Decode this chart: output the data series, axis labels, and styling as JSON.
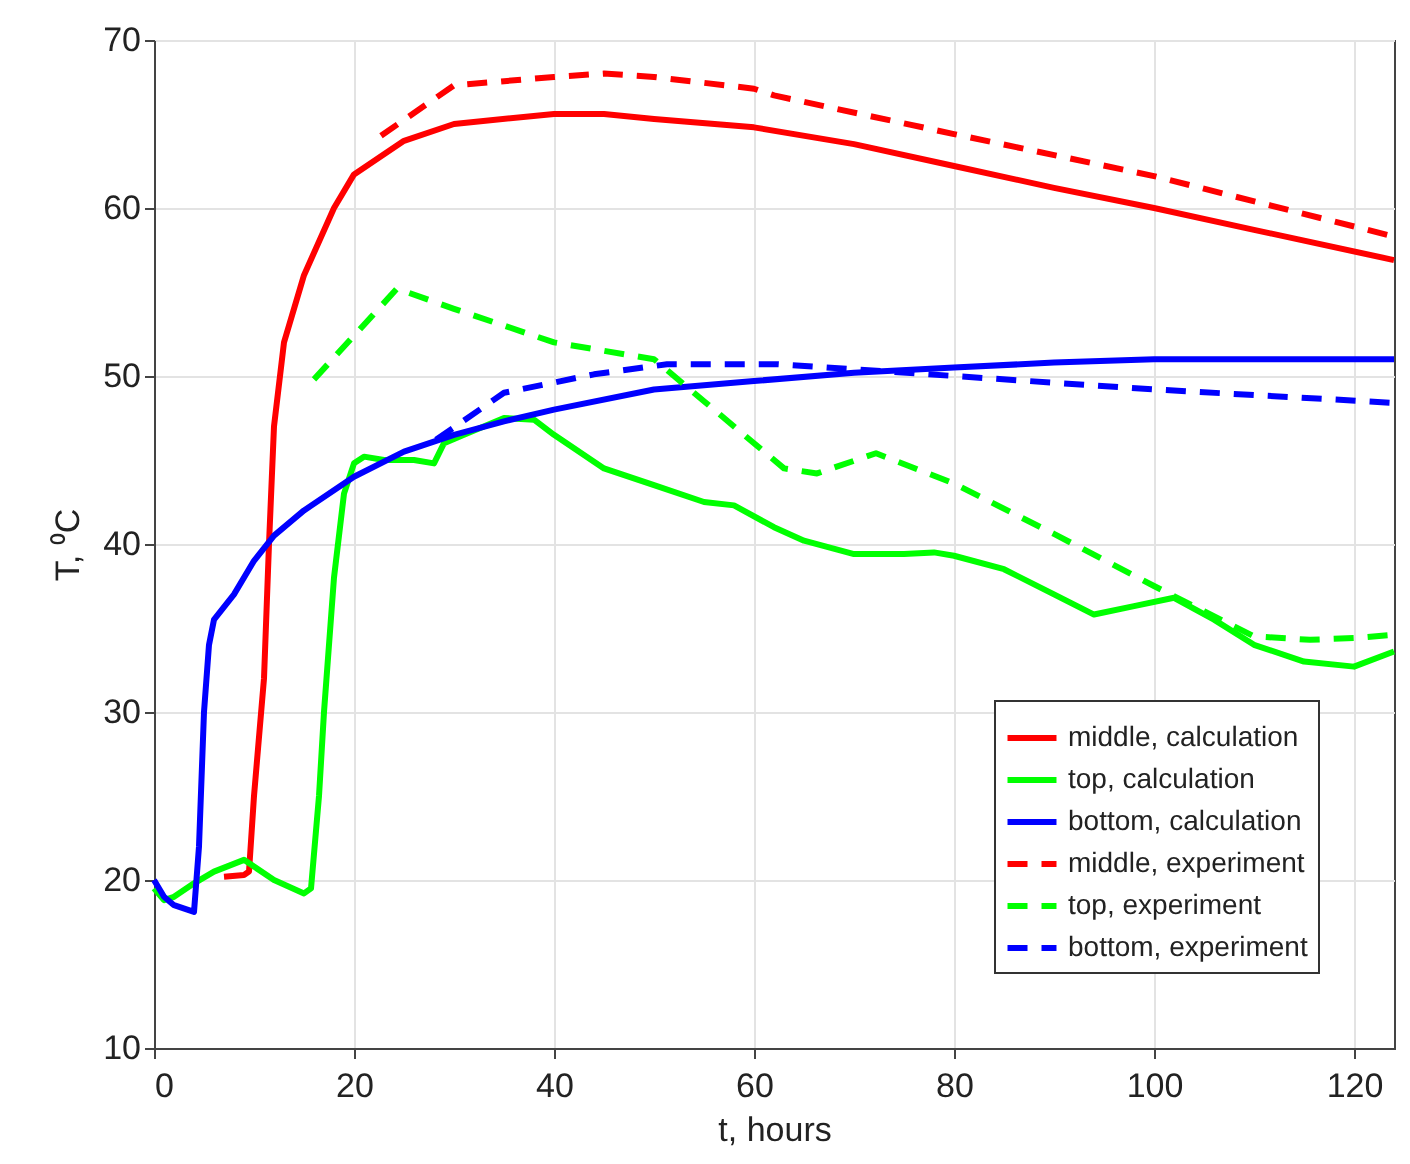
{
  "chart_data": {
    "type": "line",
    "xlabel": "t, hours",
    "ylabel": "T, ⁰C",
    "xlim": [
      0,
      124
    ],
    "xticks": [
      0,
      20,
      40,
      60,
      80,
      100,
      120
    ],
    "ylim": [
      10,
      70
    ],
    "yticks": [
      10,
      20,
      30,
      40,
      50,
      60,
      70
    ],
    "grid": true,
    "legend": "bottom right",
    "series": [
      {
        "name": "middle, calculation",
        "color": "#ff0000",
        "line_style": "solid",
        "x": [
          7,
          9,
          9.5,
          10,
          11,
          11.5,
          12,
          13,
          15,
          18,
          20,
          25,
          30,
          40,
          45,
          50,
          60,
          70,
          80,
          90,
          100,
          110,
          124
        ],
        "values": [
          20.2,
          20.3,
          20.5,
          25,
          32,
          40,
          47,
          52,
          56,
          60,
          62,
          64,
          65,
          65.6,
          65.6,
          65.3,
          64.8,
          63.8,
          62.5,
          61.2,
          60,
          58.7,
          56.9
        ]
      },
      {
        "name": "top, calculation",
        "color": "#00ff00",
        "line_style": "solid",
        "x": [
          0,
          1,
          2,
          4,
          6,
          9,
          10,
          12,
          15,
          15.7,
          16.5,
          17,
          18,
          19,
          20,
          21,
          23,
          26,
          28,
          29,
          31,
          35,
          38,
          40,
          45,
          50,
          55,
          58,
          62,
          65,
          70,
          75,
          78,
          80,
          85,
          90,
          94,
          98,
          102,
          106,
          110,
          115,
          120,
          124
        ],
        "values": [
          19.5,
          18.8,
          19,
          19.8,
          20.5,
          21.2,
          20.8,
          20,
          19.2,
          19.5,
          25,
          30,
          38,
          43,
          44.8,
          45.2,
          45,
          45,
          44.8,
          46,
          46.5,
          47.5,
          47.4,
          46.5,
          44.5,
          43.5,
          42.5,
          42.3,
          41,
          40.2,
          39.4,
          39.4,
          39.5,
          39.3,
          38.5,
          37,
          35.8,
          36.3,
          36.8,
          35.5,
          34,
          33,
          32.7,
          33.6
        ]
      },
      {
        "name": "bottom, calculation",
        "color": "#0000ff",
        "line_style": "solid",
        "x": [
          0,
          1,
          2,
          4,
          4.5,
          5,
          5.5,
          6,
          8,
          10,
          12,
          15,
          20,
          25,
          30,
          35,
          40,
          50,
          60,
          70,
          80,
          90,
          100,
          110,
          124
        ],
        "values": [
          20,
          19,
          18.5,
          18.1,
          22,
          30,
          34,
          35.5,
          37,
          39,
          40.5,
          42,
          44,
          45.5,
          46.5,
          47.3,
          48,
          49.2,
          49.7,
          50.2,
          50.5,
          50.8,
          51,
          51,
          51
        ]
      },
      {
        "name": "middle, experiment",
        "color": "#ff0000",
        "line_style": "dashed",
        "x": [
          22.7,
          30,
          40,
          45,
          50,
          60,
          62,
          80,
          100,
          124
        ],
        "values": [
          64.3,
          67.3,
          67.8,
          68,
          67.8,
          67.1,
          66.7,
          64.4,
          61.9,
          58.3
        ]
      },
      {
        "name": "top, experiment",
        "color": "#00ff00",
        "line_style": "dashed",
        "x": [
          16,
          24.3,
          30,
          40,
          45,
          50,
          55,
          60,
          63,
          66.3,
          72.2,
          80,
          90,
          100,
          105,
          110,
          115.6,
          120,
          124
        ],
        "values": [
          49.8,
          55.2,
          54,
          52,
          51.5,
          51,
          48.5,
          46,
          44.5,
          44.2,
          45.4,
          43.6,
          40.6,
          37.5,
          36,
          34.5,
          34.3,
          34.4,
          34.6
        ]
      },
      {
        "name": "bottom, experiment",
        "color": "#0000ff",
        "line_style": "dashed",
        "x": [
          28.2,
          35,
          44,
          51.3,
          62.3,
          80,
          100,
          124
        ],
        "values": [
          46.2,
          49,
          50.1,
          50.7,
          50.7,
          50,
          49.2,
          48.4
        ]
      }
    ]
  }
}
